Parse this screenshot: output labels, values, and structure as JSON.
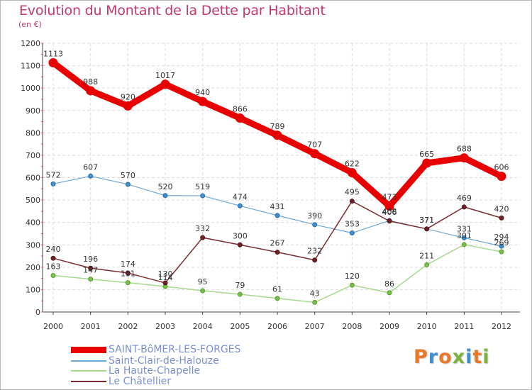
{
  "title": "Evolution du Montant de la Dette par Habitant",
  "unit": "(en €)",
  "logo": {
    "text": "Proxiti",
    "colors": [
      "#e8782a",
      "#3f8fd1",
      "#e8782a",
      "#7ab33f",
      "#3f8fd1",
      "#e8782a",
      "#7ab33f"
    ]
  },
  "chart_data": {
    "type": "line",
    "categories": [
      "2000",
      "2001",
      "2002",
      "2003",
      "2004",
      "2005",
      "2006",
      "2007",
      "2008",
      "2009",
      "2010",
      "2011",
      "2012"
    ],
    "ylim": [
      0,
      1200
    ],
    "yticks": [
      0,
      100,
      200,
      300,
      400,
      500,
      600,
      700,
      800,
      900,
      1000,
      1100,
      1200
    ],
    "grid": true,
    "legend_position": "bottom",
    "series": [
      {
        "name": "SAINT-BôMER-LES-FORGES",
        "color": "#e80000",
        "values": [
          1113,
          988,
          920,
          1017,
          940,
          866,
          789,
          707,
          622,
          473,
          665,
          688,
          606
        ]
      },
      {
        "name": "Saint-Clair-de-Halouze",
        "color": "#6ea6d6",
        "values": [
          572,
          607,
          570,
          520,
          519,
          474,
          431,
          390,
          353,
          408,
          371,
          331,
          294
        ]
      },
      {
        "name": "La Haute-Chapelle",
        "color": "#a8d88e",
        "values": [
          163,
          147,
          131,
          114,
          95,
          79,
          61,
          43,
          120,
          86,
          211,
          301,
          269
        ]
      },
      {
        "name": "Le Châtellier",
        "color": "#7a2b30",
        "values": [
          240,
          196,
          174,
          130,
          332,
          300,
          267,
          232,
          495,
          406,
          371,
          469,
          420
        ]
      }
    ]
  }
}
